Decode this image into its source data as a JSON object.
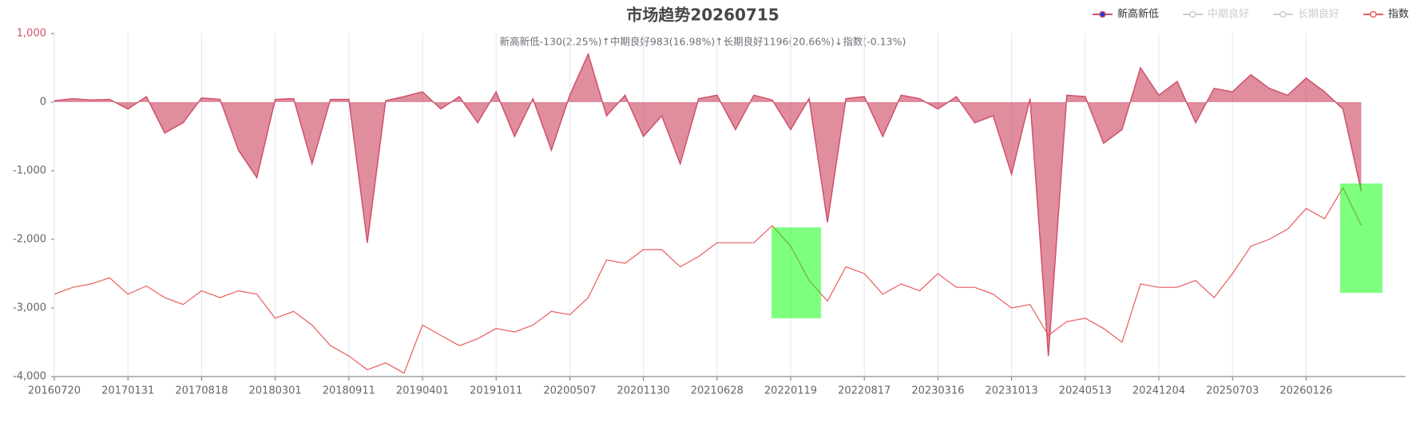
{
  "chart_data": {
    "type": "line",
    "title": "市场趋势20260715",
    "subtitle": "新高新低-130(2.25%)↑中期良好983(16.98%)↑长期良好1196(20.66%)↓指数(-0.13%)",
    "categories": [
      "20160720",
      null,
      null,
      null,
      "20170131",
      null,
      null,
      null,
      "20170818",
      null,
      null,
      null,
      "20180301",
      null,
      null,
      null,
      "20180911",
      null,
      null,
      null,
      "20190401",
      null,
      null,
      null,
      "20191011",
      null,
      null,
      null,
      "20200507",
      null,
      null,
      null,
      "20201130",
      null,
      null,
      null,
      "20210628",
      null,
      null,
      null,
      "20220119",
      null,
      null,
      null,
      "20220817",
      null,
      null,
      null,
      "20230316",
      null,
      null,
      null,
      "20231013",
      null,
      null,
      null,
      "20240513",
      null,
      null,
      null,
      "20241204",
      null,
      null,
      null,
      "20250703",
      null,
      null,
      null,
      "20260126",
      null,
      null,
      null
    ],
    "ylim": [
      -4000,
      1000
    ],
    "yticks": [
      {
        "value": 1000,
        "label": "1,000"
      },
      0,
      {
        "value": -1000,
        "label": "-1,000"
      },
      {
        "value": -2000,
        "label": "-2,000"
      },
      {
        "value": -3000,
        "label": "-3,000"
      },
      {
        "value": -4000,
        "label": "-4,000"
      }
    ],
    "grid": true,
    "legend_position": "top-right",
    "series": [
      {
        "name": "新高新低",
        "color": "#d0506a",
        "area": true,
        "visible": true,
        "values": [
          20,
          50,
          30,
          40,
          -100,
          80,
          -450,
          -300,
          60,
          40,
          -700,
          -1100,
          40,
          50,
          -900,
          40,
          40,
          -2050,
          20,
          80,
          150,
          -100,
          80,
          -300,
          150,
          -500,
          50,
          -700,
          100,
          700,
          -200,
          100,
          -500,
          -200,
          -900,
          50,
          100,
          -400,
          100,
          30,
          -400,
          50,
          -1750,
          50,
          80,
          -500,
          100,
          50,
          -100,
          80,
          -300,
          -200,
          -1050,
          50,
          -3700,
          100,
          80,
          -600,
          -400,
          500,
          100,
          300,
          -300,
          200,
          150,
          400,
          200,
          100,
          350,
          150,
          -100,
          -1300
        ]
      },
      {
        "name": "中期良好",
        "color": "#cccccc",
        "visible": false
      },
      {
        "name": "长期良好",
        "color": "#cccccc",
        "visible": false
      },
      {
        "name": "指数",
        "color": "#e85c5c",
        "area": false,
        "visible": true,
        "values": [
          -2800,
          -2700,
          -2650,
          -2560,
          -2800,
          -2680,
          -2850,
          -2950,
          -2750,
          -2850,
          -2750,
          -2800,
          -3150,
          -3050,
          -3250,
          -3550,
          -3700,
          -3900,
          -3800,
          -3950,
          -3250,
          -3400,
          -3550,
          -3450,
          -3300,
          -3350,
          -3250,
          -3050,
          -3100,
          -2850,
          -2300,
          -2350,
          -2150,
          -2150,
          -2400,
          -2250,
          -2050,
          -2050,
          -2050,
          -1800,
          -2100,
          -2600,
          -2900,
          -2400,
          -2500,
          -2800,
          -2650,
          -2750,
          -2500,
          -2700,
          -2700,
          -2800,
          -3000,
          -2950,
          -3400,
          -3200,
          -3150,
          -3300,
          -3500,
          -2650,
          -2700,
          -2700,
          -2600,
          -2850,
          -2500,
          -2100,
          -2000,
          -1850,
          -1550,
          -1700,
          -1250,
          -1800
        ]
      }
    ]
  }
}
